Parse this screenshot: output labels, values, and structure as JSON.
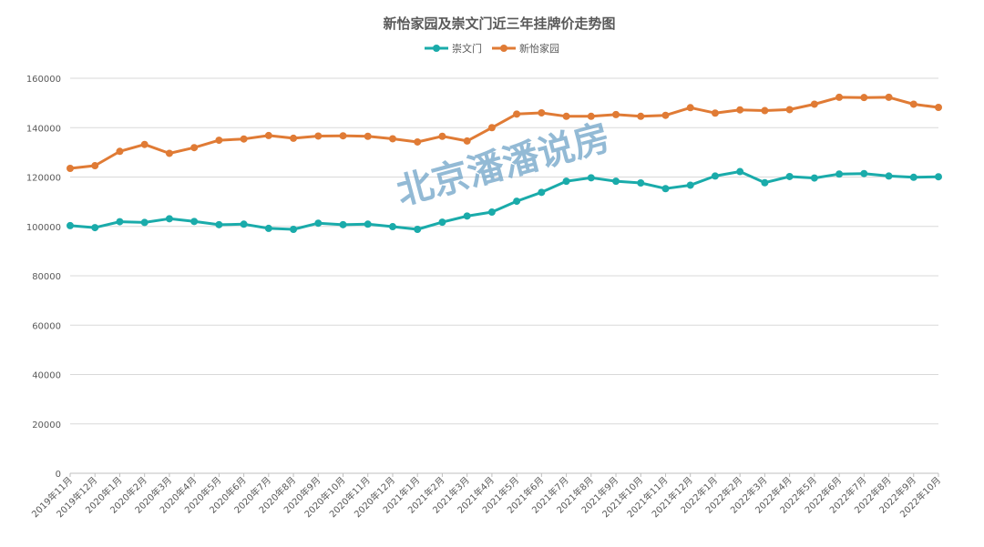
{
  "chart_data": {
    "type": "line",
    "title": "新怡家园及崇文门近三年挂牌价走势图",
    "xlabel": "",
    "ylabel": "",
    "ylim": [
      0,
      160000
    ],
    "yticks": [
      0,
      20000,
      40000,
      60000,
      80000,
      100000,
      120000,
      140000,
      160000
    ],
    "grid": true,
    "legend_position": "top",
    "categories": [
      "2019年11月",
      "2019年12月",
      "2020年1月",
      "2020年2月",
      "2020年3月",
      "2020年4月",
      "2020年5月",
      "2020年6月",
      "2020年7月",
      "2020年8月",
      "2020年9月",
      "2020年10月",
      "2020年11月",
      "2020年12月",
      "2021年1月",
      "2021年2月",
      "2021年3月",
      "2021年4月",
      "2021年5月",
      "2021年6月",
      "2021年7月",
      "2021年8月",
      "2021年9月",
      "2021年10月",
      "2021年11月",
      "2021年12月",
      "2022年1月",
      "2022年2月",
      "2022年3月",
      "2022年4月",
      "2022年5月",
      "2022年6月",
      "2022年7月",
      "2022年8月",
      "2022年9月",
      "2022年10月"
    ],
    "series": [
      {
        "name": "崇文门",
        "color": "#1aabaa",
        "values": [
          100300,
          99500,
          101900,
          101600,
          103100,
          102000,
          100700,
          100900,
          99200,
          98800,
          101300,
          100700,
          100900,
          99900,
          98800,
          101700,
          104200,
          105800,
          110200,
          113800,
          118300,
          119700,
          118300,
          117600,
          115300,
          116700,
          120400,
          122200,
          117700,
          120200,
          119600,
          121200,
          121400,
          120400,
          119900,
          120100
        ]
      },
      {
        "name": "新怡家园",
        "color": "#e07b35",
        "values": [
          123500,
          124600,
          130400,
          133200,
          129600,
          131900,
          134900,
          135400,
          136800,
          135700,
          136600,
          136700,
          136500,
          135500,
          134200,
          136500,
          134600,
          140000,
          145500,
          146000,
          144600,
          144600,
          145300,
          144600,
          145000,
          148100,
          145900,
          147200,
          146900,
          147300,
          149500,
          152300,
          152200,
          152300,
          149500,
          148200
        ]
      }
    ]
  },
  "legend": {
    "items": [
      {
        "label": "崇文门",
        "color": "#1aabaa"
      },
      {
        "label": "新怡家园",
        "color": "#e07b35"
      }
    ]
  },
  "watermark": "北京潘潘说房"
}
